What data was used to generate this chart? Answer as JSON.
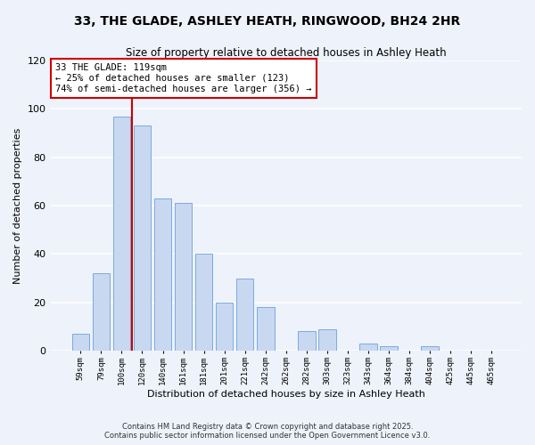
{
  "title": "33, THE GLADE, ASHLEY HEATH, RINGWOOD, BH24 2HR",
  "subtitle": "Size of property relative to detached houses in Ashley Heath",
  "xlabel": "Distribution of detached houses by size in Ashley Heath",
  "ylabel": "Number of detached properties",
  "bar_labels": [
    "59sqm",
    "79sqm",
    "100sqm",
    "120sqm",
    "140sqm",
    "161sqm",
    "181sqm",
    "201sqm",
    "221sqm",
    "242sqm",
    "262sqm",
    "282sqm",
    "303sqm",
    "323sqm",
    "343sqm",
    "364sqm",
    "384sqm",
    "404sqm",
    "425sqm",
    "445sqm",
    "465sqm"
  ],
  "bar_values": [
    7,
    32,
    97,
    93,
    63,
    61,
    40,
    20,
    30,
    18,
    0,
    8,
    9,
    0,
    3,
    2,
    0,
    2,
    0,
    0,
    0
  ],
  "bar_color": "#c8d8f0",
  "bar_edge_color": "#7aabe0",
  "vline_color": "#cc0000",
  "annotation_text": "33 THE GLADE: 119sqm\n← 25% of detached houses are smaller (123)\n74% of semi-detached houses are larger (356) →",
  "annotation_box_color": "#ffffff",
  "annotation_box_edge": "#cc0000",
  "ylim": [
    0,
    120
  ],
  "yticks": [
    0,
    20,
    40,
    60,
    80,
    100,
    120
  ],
  "footer_line1": "Contains HM Land Registry data © Crown copyright and database right 2025.",
  "footer_line2": "Contains public sector information licensed under the Open Government Licence v3.0.",
  "bg_color": "#eef2fb",
  "plot_bg_color": "#eef2fb",
  "grid_color": "#ffffff"
}
